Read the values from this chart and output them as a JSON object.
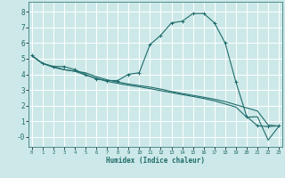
{
  "xlabel": "Humidex (Indice chaleur)",
  "bg_color": "#cde8e8",
  "grid_color": "#ffffff",
  "line_color": "#1e6b6b",
  "xlim": [
    -0.3,
    23.3
  ],
  "ylim": [
    -0.65,
    8.65
  ],
  "xticks": [
    0,
    1,
    2,
    3,
    4,
    5,
    6,
    7,
    8,
    9,
    10,
    11,
    12,
    13,
    14,
    15,
    16,
    17,
    18,
    19,
    20,
    21,
    22,
    23
  ],
  "yticks": [
    0,
    1,
    2,
    3,
    4,
    5,
    6,
    7,
    8
  ],
  "ytick_labels": [
    "-0",
    "1",
    "2",
    "3",
    "4",
    "5",
    "6",
    "7",
    "8"
  ],
  "line1_x": [
    0,
    1,
    2,
    3,
    4,
    5,
    6,
    7,
    8,
    9,
    10,
    11,
    12,
    13,
    14,
    15,
    16,
    17,
    18,
    19,
    20,
    21,
    22,
    23
  ],
  "line1_y": [
    5.2,
    4.7,
    4.5,
    4.5,
    4.3,
    4.0,
    3.7,
    3.6,
    3.6,
    4.0,
    4.1,
    5.9,
    6.5,
    7.3,
    7.4,
    7.9,
    7.9,
    7.3,
    6.0,
    3.5,
    1.3,
    0.7,
    0.65,
    0.7
  ],
  "line2_x": [
    0,
    1,
    2,
    3,
    4,
    5,
    6,
    7,
    8,
    9,
    10,
    11,
    12,
    13,
    14,
    15,
    16,
    17,
    18,
    19,
    20,
    21,
    22,
    23
  ],
  "line2_y": [
    5.2,
    4.7,
    4.5,
    4.3,
    4.2,
    4.1,
    3.85,
    3.65,
    3.5,
    3.38,
    3.28,
    3.18,
    3.05,
    2.9,
    2.77,
    2.65,
    2.53,
    2.4,
    2.25,
    2.05,
    1.85,
    1.65,
    0.75,
    0.68
  ],
  "line3_x": [
    0,
    1,
    2,
    3,
    4,
    5,
    6,
    7,
    8,
    9,
    10,
    11,
    12,
    13,
    14,
    15,
    16,
    17,
    18,
    19,
    20,
    21,
    22,
    23
  ],
  "line3_y": [
    5.2,
    4.7,
    4.45,
    4.3,
    4.2,
    3.95,
    3.75,
    3.55,
    3.42,
    3.3,
    3.2,
    3.08,
    2.95,
    2.83,
    2.7,
    2.58,
    2.45,
    2.3,
    2.1,
    1.9,
    1.25,
    1.28,
    -0.22,
    0.68
  ]
}
